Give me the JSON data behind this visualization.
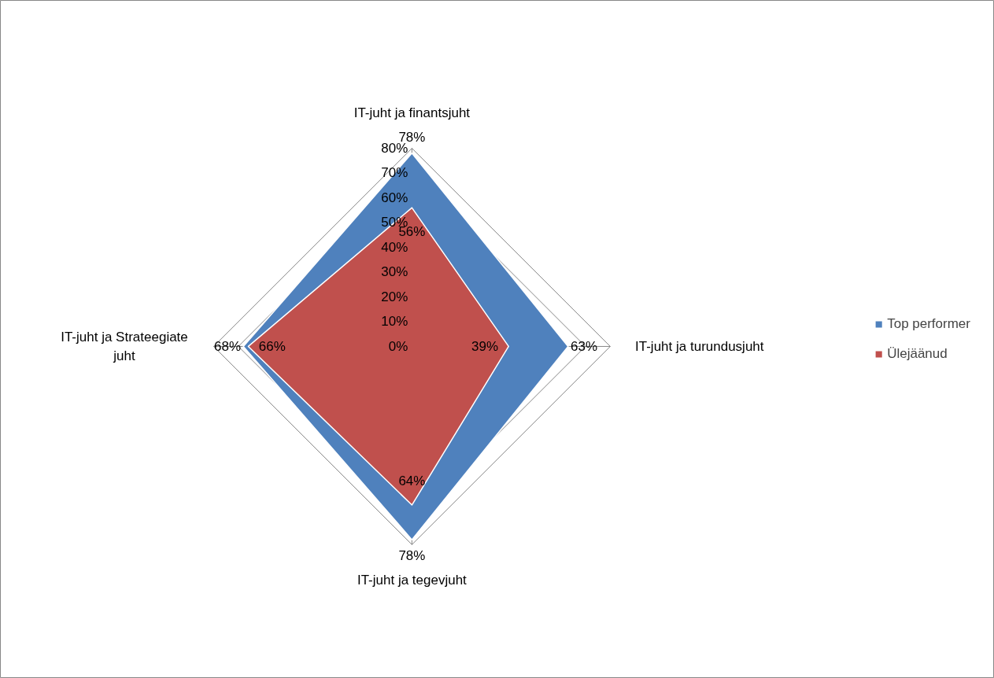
{
  "chart_data": {
    "type": "radar",
    "categories": [
      "IT-juht ja finantsjuht",
      "IT-juht ja turundusjuht",
      "IT-juht ja tegevjuht",
      "IT-juht ja Strateegiate juht"
    ],
    "series": [
      {
        "name": "Top performer",
        "color": "#4f81bd",
        "values": [
          78,
          63,
          78,
          68
        ],
        "value_labels": [
          "78%",
          "63%",
          "78%",
          "68%"
        ]
      },
      {
        "name": "Ülejäänud",
        "color": "#c0504d",
        "values": [
          56,
          39,
          64,
          66
        ],
        "value_labels": [
          "56%",
          "39%",
          "64%",
          "66%"
        ]
      }
    ],
    "ylim": [
      0,
      80
    ],
    "yticks": [
      {
        "value": 0,
        "label": "0%"
      },
      {
        "value": 10,
        "label": "10%"
      },
      {
        "value": 20,
        "label": "20%"
      },
      {
        "value": 30,
        "label": "30%"
      },
      {
        "value": 40,
        "label": "40%"
      },
      {
        "value": 50,
        "label": "50%"
      },
      {
        "value": 60,
        "label": "60%"
      },
      {
        "value": 70,
        "label": "70%"
      },
      {
        "value": 80,
        "label": "80%"
      }
    ],
    "grid": true,
    "legend": "right"
  }
}
